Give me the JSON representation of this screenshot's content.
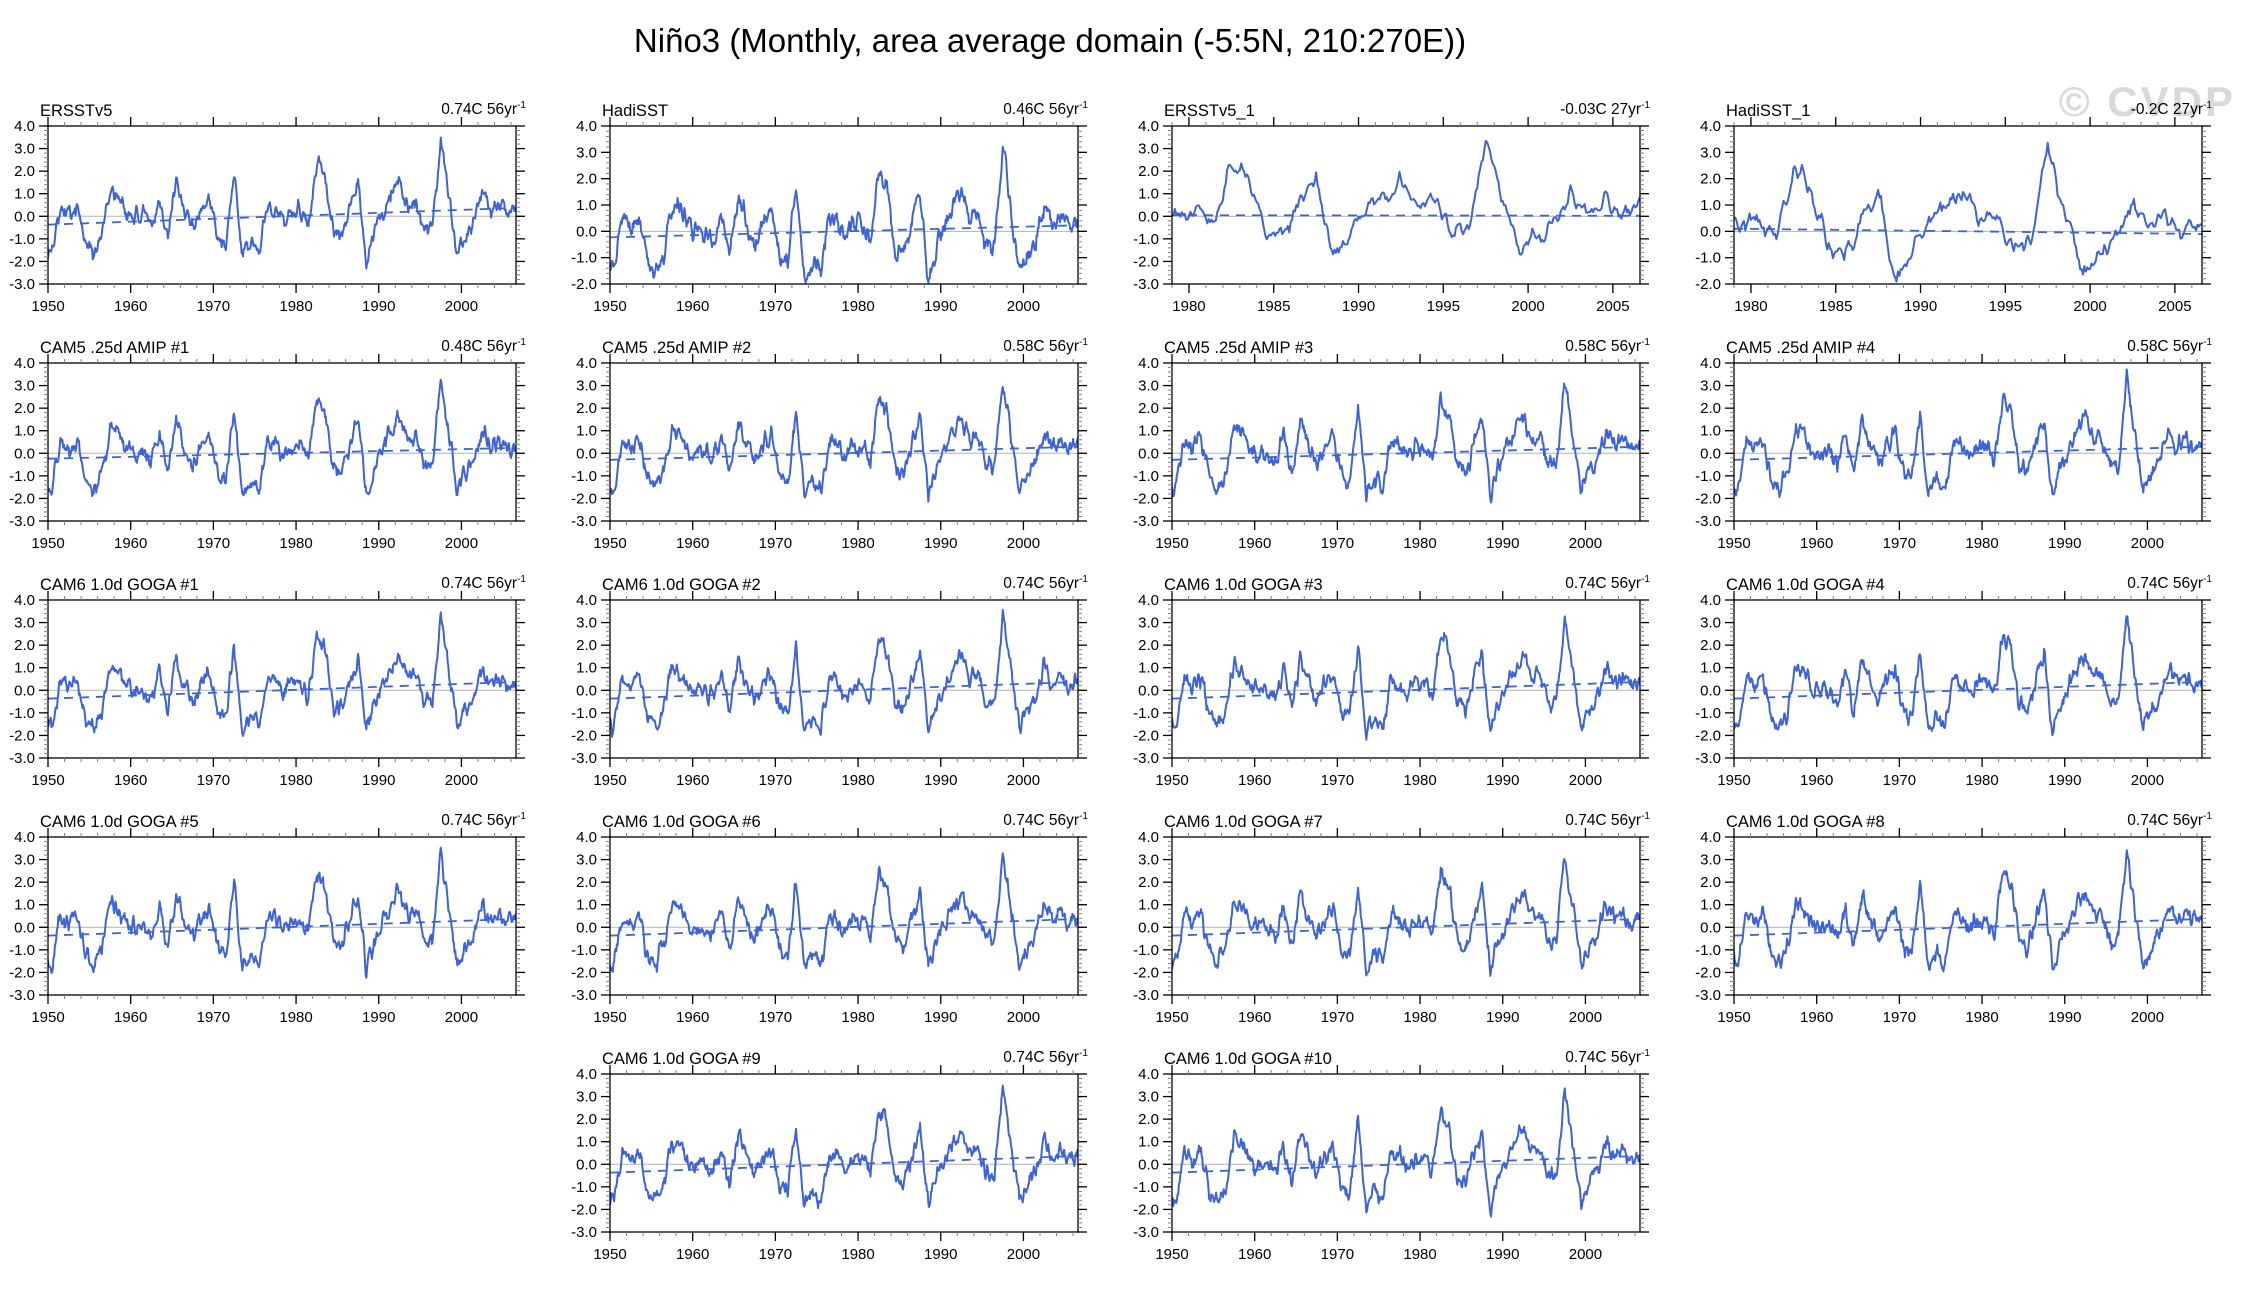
{
  "page": {
    "title": "Niño3 (Monthly, area average domain (-5:5N, 210:270E))",
    "watermark": "© CVDP"
  },
  "chart_data": {
    "type": "line",
    "title": "Niño3 (Monthly, area average domain (-5:5N, 210:270E))",
    "ylabel": "",
    "xlabel": "",
    "grid": false,
    "legend": "none",
    "line_color": "#3E63D6",
    "zero_line_color": "#b3b3b3",
    "base_series": {
      "obs": {
        "start_year": 1950,
        "annual_values": [
          -1.6,
          0.6,
          0.1,
          0.6,
          -1.2,
          -1.6,
          -0.9,
          1.1,
          0.9,
          0.1,
          0.0,
          0.0,
          -0.4,
          0.8,
          -0.9,
          1.4,
          0.3,
          -0.5,
          0.4,
          0.8,
          -0.9,
          -1.2,
          1.9,
          -1.9,
          -1.1,
          -1.6,
          0.5,
          0.4,
          -0.2,
          0.3,
          0.3,
          -0.3,
          2.4,
          1.8,
          -0.6,
          -0.9,
          0.4,
          1.6,
          -1.9,
          -0.6,
          0.2,
          1.0,
          1.6,
          0.5,
          0.7,
          -0.6,
          -0.5,
          3.3,
          0.8,
          -1.6,
          -0.9,
          -0.3,
          1.0,
          0.3,
          0.6,
          0.2,
          0.4
        ]
      }
    },
    "xtick_sets": {
      "t56": {
        "values": [
          1950,
          1960,
          1970,
          1980,
          1990,
          2000
        ],
        "labels": [
          "1950",
          "1960",
          "1970",
          "1980",
          "1990",
          "2000"
        ],
        "xlim": [
          1950,
          2006.6
        ],
        "minor_step": 2
      },
      "t27": {
        "values": [
          1980,
          1985,
          1990,
          1995,
          2000,
          2005
        ],
        "labels": [
          "1980",
          "1985",
          "1990",
          "1995",
          "2000",
          "2005"
        ],
        "xlim": [
          1979,
          2006.6
        ],
        "minor_step": 1
      }
    },
    "ytick_sets": {
      "ym3": {
        "values": [
          4,
          3,
          2,
          1,
          0,
          -1,
          -2,
          -3
        ],
        "labels": [
          "4.0",
          "3.0",
          "2.0",
          "1.0",
          "0.0",
          "-1.0",
          "-2.0",
          "-3.0"
        ],
        "ylim": [
          -3,
          4
        ],
        "minor_step": 0.2
      },
      "ym2": {
        "values": [
          4,
          3,
          2,
          1,
          0,
          -1,
          -2
        ],
        "labels": [
          "4.0",
          "3.0",
          "2.0",
          "1.0",
          "0.0",
          "-1.0",
          "-2.0"
        ],
        "ylim": [
          -2,
          4
        ],
        "minor_step": 0.2
      }
    },
    "panels": [
      {
        "title": "ERSSTv5",
        "trend_label": "0.74C 56yr",
        "trend_sup": "-1",
        "row": 1,
        "col": 1,
        "xticks": "t56",
        "yticks": "ym3",
        "trend_line": [
          -0.37,
          0.37
        ],
        "seed": 101
      },
      {
        "title": "HadiSST",
        "trend_label": "0.46C 56yr",
        "trend_sup": "-1",
        "row": 1,
        "col": 2,
        "xticks": "t56",
        "yticks": "ym2",
        "trend_line": [
          -0.23,
          0.23
        ],
        "seed": 102
      },
      {
        "title": "ERSSTv5_1",
        "trend_label": "-0.03C 27yr",
        "trend_sup": "-1",
        "row": 1,
        "col": 3,
        "xticks": "t27",
        "yticks": "ym3",
        "trend_line": [
          0.05,
          0.02
        ],
        "seed": 103
      },
      {
        "title": "HadiSST_1",
        "trend_label": "-0.2C 27yr",
        "trend_sup": "-1",
        "row": 1,
        "col": 4,
        "xticks": "t27",
        "yticks": "ym2",
        "trend_line": [
          0.1,
          -0.1
        ],
        "seed": 104
      },
      {
        "title": "CAM5 .25d AMIP #1",
        "trend_label": "0.48C 56yr",
        "trend_sup": "-1",
        "row": 2,
        "col": 1,
        "xticks": "t56",
        "yticks": "ym3",
        "trend_line": [
          -0.24,
          0.24
        ],
        "seed": 201
      },
      {
        "title": "CAM5 .25d AMIP #2",
        "trend_label": "0.58C 56yr",
        "trend_sup": "-1",
        "row": 2,
        "col": 2,
        "xticks": "t56",
        "yticks": "ym3",
        "trend_line": [
          -0.29,
          0.29
        ],
        "seed": 202
      },
      {
        "title": "CAM5 .25d AMIP #3",
        "trend_label": "0.58C 56yr",
        "trend_sup": "-1",
        "row": 2,
        "col": 3,
        "xticks": "t56",
        "yticks": "ym3",
        "trend_line": [
          -0.29,
          0.29
        ],
        "seed": 203
      },
      {
        "title": "CAM5 .25d AMIP #4",
        "trend_label": "0.58C 56yr",
        "trend_sup": "-1",
        "row": 2,
        "col": 4,
        "xticks": "t56",
        "yticks": "ym3",
        "trend_line": [
          -0.29,
          0.29
        ],
        "seed": 204
      },
      {
        "title": "CAM6 1.0d GOGA #1",
        "trend_label": "0.74C 56yr",
        "trend_sup": "-1",
        "row": 3,
        "col": 1,
        "xticks": "t56",
        "yticks": "ym3",
        "trend_line": [
          -0.37,
          0.37
        ],
        "seed": 301
      },
      {
        "title": "CAM6 1.0d GOGA #2",
        "trend_label": "0.74C 56yr",
        "trend_sup": "-1",
        "row": 3,
        "col": 2,
        "xticks": "t56",
        "yticks": "ym3",
        "trend_line": [
          -0.37,
          0.37
        ],
        "seed": 302
      },
      {
        "title": "CAM6 1.0d GOGA #3",
        "trend_label": "0.74C 56yr",
        "trend_sup": "-1",
        "row": 3,
        "col": 3,
        "xticks": "t56",
        "yticks": "ym3",
        "trend_line": [
          -0.37,
          0.37
        ],
        "seed": 303
      },
      {
        "title": "CAM6 1.0d GOGA #4",
        "trend_label": "0.74C 56yr",
        "trend_sup": "-1",
        "row": 3,
        "col": 4,
        "xticks": "t56",
        "yticks": "ym3",
        "trend_line": [
          -0.37,
          0.37
        ],
        "seed": 304
      },
      {
        "title": "CAM6 1.0d GOGA #5",
        "trend_label": "0.74C 56yr",
        "trend_sup": "-1",
        "row": 4,
        "col": 1,
        "xticks": "t56",
        "yticks": "ym3",
        "trend_line": [
          -0.37,
          0.37
        ],
        "seed": 305
      },
      {
        "title": "CAM6 1.0d GOGA #6",
        "trend_label": "0.74C 56yr",
        "trend_sup": "-1",
        "row": 4,
        "col": 2,
        "xticks": "t56",
        "yticks": "ym3",
        "trend_line": [
          -0.37,
          0.37
        ],
        "seed": 306
      },
      {
        "title": "CAM6 1.0d GOGA #7",
        "trend_label": "0.74C 56yr",
        "trend_sup": "-1",
        "row": 4,
        "col": 3,
        "xticks": "t56",
        "yticks": "ym3",
        "trend_line": [
          -0.37,
          0.37
        ],
        "seed": 307
      },
      {
        "title": "CAM6 1.0d GOGA #8",
        "trend_label": "0.74C 56yr",
        "trend_sup": "-1",
        "row": 4,
        "col": 4,
        "xticks": "t56",
        "yticks": "ym3",
        "trend_line": [
          -0.37,
          0.37
        ],
        "seed": 308
      },
      {
        "title": "CAM6 1.0d GOGA #9",
        "trend_label": "0.74C 56yr",
        "trend_sup": "-1",
        "row": 5,
        "col": 2,
        "xticks": "t56",
        "yticks": "ym3",
        "trend_line": [
          -0.37,
          0.37
        ],
        "seed": 309
      },
      {
        "title": "CAM6 1.0d GOGA #10",
        "trend_label": "0.74C 56yr",
        "trend_sup": "-1",
        "row": 5,
        "col": 3,
        "xticks": "t56",
        "yticks": "ym3",
        "trend_line": [
          -0.37,
          0.37
        ],
        "seed": 310
      }
    ]
  }
}
